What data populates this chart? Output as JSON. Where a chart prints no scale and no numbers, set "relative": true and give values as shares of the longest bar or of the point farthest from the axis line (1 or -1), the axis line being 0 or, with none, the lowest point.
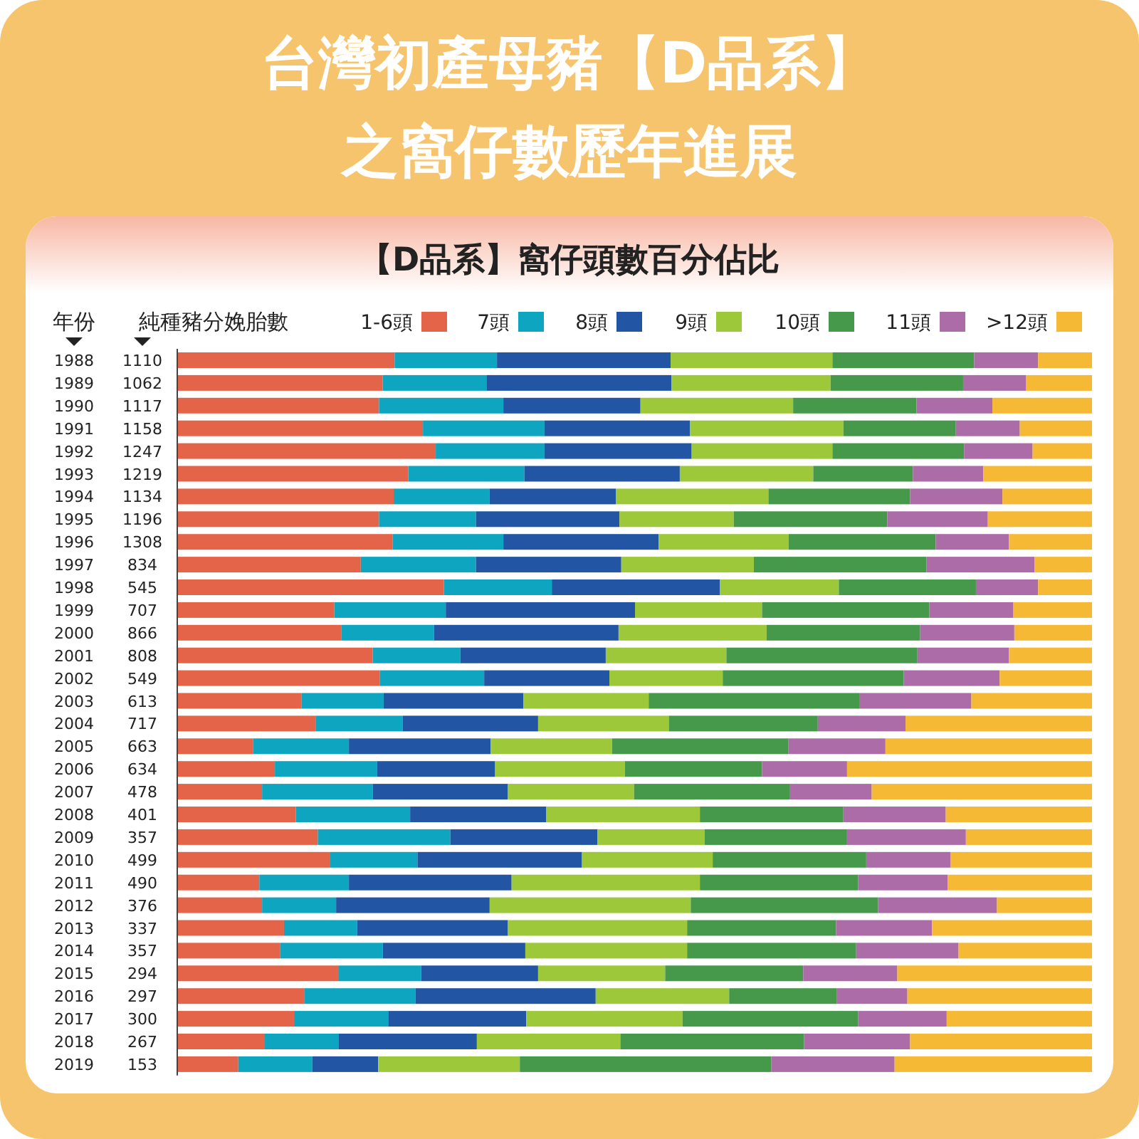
{
  "chart_data": {
    "type": "bar",
    "orientation": "horizontal",
    "stacked": true,
    "relative": true,
    "title": "台灣初產母豬【D品系】之窩仔數歷年進展",
    "subtitle": "【D品系】窩仔頭數百分佔比",
    "ylabel": "年份",
    "legend": "top",
    "categories": [
      "1988",
      "1989",
      "1990",
      "1991",
      "1992",
      "1993",
      "1994",
      "1995",
      "1996",
      "1997",
      "1998",
      "1999",
      "2000",
      "2001",
      "2002",
      "2003",
      "2004",
      "2005",
      "2006",
      "2007",
      "2008",
      "2009",
      "2010",
      "2011",
      "2012",
      "2013",
      "2014",
      "2015",
      "2016",
      "2017",
      "2018",
      "2019"
    ],
    "series": [
      {
        "name": "1-6頭",
        "color": "#e4644a",
        "values": [
          0.237,
          0.224,
          0.22,
          0.268,
          0.282,
          0.252,
          0.236,
          0.22,
          0.235,
          0.2,
          0.291,
          0.171,
          0.179,
          0.213,
          0.221,
          0.135,
          0.151,
          0.082,
          0.106,
          0.092,
          0.129,
          0.153,
          0.166,
          0.089,
          0.092,
          0.116,
          0.112,
          0.176,
          0.138,
          0.127,
          0.095,
          0.066
        ]
      },
      {
        "name": "7頭",
        "color": "#0ea5c0",
        "values": [
          0.112,
          0.114,
          0.136,
          0.133,
          0.119,
          0.127,
          0.105,
          0.106,
          0.121,
          0.126,
          0.118,
          0.122,
          0.101,
          0.096,
          0.114,
          0.09,
          0.095,
          0.105,
          0.112,
          0.121,
          0.125,
          0.145,
          0.096,
          0.098,
          0.081,
          0.08,
          0.112,
          0.09,
          0.122,
          0.103,
          0.081,
          0.081
        ]
      },
      {
        "name": "8頭",
        "color": "#2255a4",
        "values": [
          0.19,
          0.202,
          0.15,
          0.159,
          0.161,
          0.17,
          0.138,
          0.157,
          0.17,
          0.159,
          0.184,
          0.207,
          0.202,
          0.159,
          0.137,
          0.153,
          0.148,
          0.155,
          0.129,
          0.148,
          0.149,
          0.161,
          0.18,
          0.178,
          0.168,
          0.165,
          0.156,
          0.128,
          0.197,
          0.151,
          0.151,
          0.072
        ]
      },
      {
        "name": "9頭",
        "color": "#9dc83a",
        "values": [
          0.177,
          0.174,
          0.167,
          0.168,
          0.154,
          0.146,
          0.167,
          0.125,
          0.142,
          0.145,
          0.13,
          0.139,
          0.162,
          0.132,
          0.124,
          0.137,
          0.143,
          0.133,
          0.142,
          0.138,
          0.168,
          0.117,
          0.143,
          0.206,
          0.22,
          0.196,
          0.177,
          0.139,
          0.146,
          0.171,
          0.157,
          0.155
        ]
      },
      {
        "name": "10頭",
        "color": "#46994a",
        "values": [
          0.155,
          0.145,
          0.135,
          0.123,
          0.144,
          0.109,
          0.155,
          0.168,
          0.161,
          0.189,
          0.15,
          0.183,
          0.168,
          0.209,
          0.198,
          0.231,
          0.163,
          0.193,
          0.15,
          0.17,
          0.157,
          0.156,
          0.168,
          0.173,
          0.205,
          0.163,
          0.185,
          0.151,
          0.118,
          0.192,
          0.201,
          0.275
        ]
      },
      {
        "name": "11頭",
        "color": "#ab6ca8",
        "values": [
          0.07,
          0.069,
          0.083,
          0.07,
          0.075,
          0.077,
          0.101,
          0.11,
          0.08,
          0.118,
          0.068,
          0.092,
          0.103,
          0.1,
          0.105,
          0.122,
          0.096,
          0.106,
          0.093,
          0.09,
          0.112,
          0.13,
          0.092,
          0.098,
          0.13,
          0.105,
          0.112,
          0.103,
          0.077,
          0.097,
          0.116,
          0.135
        ]
      },
      {
        "name": ">12頭",
        "color": "#f5b935",
        "values": [
          0.059,
          0.072,
          0.109,
          0.079,
          0.065,
          0.119,
          0.098,
          0.114,
          0.091,
          0.063,
          0.059,
          0.086,
          0.085,
          0.091,
          0.101,
          0.132,
          0.204,
          0.226,
          0.268,
          0.241,
          0.16,
          0.138,
          0.155,
          0.158,
          0.104,
          0.175,
          0.146,
          0.213,
          0.202,
          0.159,
          0.199,
          0.216
        ]
      }
    ],
    "annotations": [
      "純種豬分娩胎數",
      "1110",
      "1062",
      "1117",
      "1158",
      "1247",
      "1219",
      "1134",
      "1196",
      "1308",
      "834",
      "545",
      "707",
      "866",
      "808",
      "549",
      "613",
      "717",
      "663",
      "634",
      "478",
      "401",
      "357",
      "499",
      "490",
      "376",
      "337",
      "357",
      "294",
      "297",
      "300",
      "267",
      "153"
    ]
  }
}
